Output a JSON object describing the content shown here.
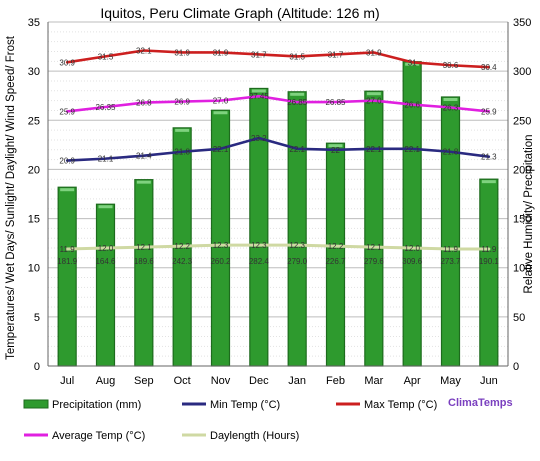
{
  "chart_data": {
    "type": "bar",
    "title": "Iquitos, Peru Climate Graph (Altitude: 126 m)",
    "ylabel_left": "Temperatures/ Wet Days/ Sunlight/ Daylight/ Wind Speed/ Frost",
    "ylabel_right": "Relative Humidity/ Precipitation",
    "ylim_left": [
      0,
      35
    ],
    "ylim_right": [
      0,
      350
    ],
    "yticks_left": [
      "0",
      "5",
      "10",
      "15",
      "20",
      "25",
      "30",
      "35"
    ],
    "yticks_right": [
      "0",
      "50",
      "100",
      "150",
      "200",
      "250",
      "300",
      "350"
    ],
    "categories": [
      "Jul",
      "Aug",
      "Sep",
      "Oct",
      "Nov",
      "Dec",
      "Jan",
      "Feb",
      "Mar",
      "Apr",
      "May",
      "Jun"
    ],
    "grid": true,
    "legend_position": "bottom",
    "series": [
      {
        "name": "Precipitation (mm)",
        "kind": "bar",
        "axis": "right",
        "color": "#2e9a2e",
        "values": [
          181.9,
          164.6,
          189.6,
          242.3,
          260.2,
          282.4,
          279.0,
          226.7,
          279.6,
          309.6,
          273.7,
          190.1
        ],
        "labels": [
          "181.9",
          "164.6",
          "189.6",
          "242.3",
          "260.2",
          "282.4",
          "279.0",
          "226.7",
          "279.6",
          "309.6",
          "273.7",
          "190.1"
        ]
      },
      {
        "name": "Min Temp (°C)",
        "kind": "line",
        "axis": "left",
        "color": "#2a2a80",
        "values": [
          20.9,
          21.1,
          21.4,
          21.8,
          22.1,
          23.2,
          22.1,
          22.0,
          22.1,
          22.1,
          21.8,
          21.3
        ],
        "labels": [
          "20.9",
          "21.1",
          "21.4",
          "21.8",
          "22.1",
          "23.2",
          "22.1",
          "22",
          "22.1",
          "22.1",
          "21.8",
          "21.3"
        ]
      },
      {
        "name": "Max Temp (°C)",
        "kind": "line",
        "axis": "left",
        "color": "#cc1f1f",
        "values": [
          30.9,
          31.5,
          32.1,
          31.9,
          31.9,
          31.7,
          31.5,
          31.7,
          31.9,
          30.9,
          30.6,
          30.4
        ],
        "labels": [
          "30.9",
          "31.5",
          "32.1",
          "31.9",
          "31.9",
          "31.7",
          "31.5",
          "31.7",
          "31.9",
          "31",
          "30.6",
          "30.4"
        ]
      },
      {
        "name": "Average Temp (°C)",
        "kind": "line",
        "axis": "left",
        "color": "#e020e0",
        "values": [
          25.9,
          26.35,
          26.8,
          26.9,
          27.0,
          27.45,
          26.85,
          26.85,
          27.0,
          26.6,
          26.3,
          25.9
        ],
        "labels": [
          "25.9",
          "26.35",
          "26.8",
          "26.9",
          "27.0",
          "27.45",
          "26.85",
          "26.85",
          "27.0",
          "26.6",
          "26.3",
          "25.9"
        ]
      },
      {
        "name": "Daylength (Hours)",
        "kind": "line",
        "axis": "left",
        "color": "#cfd9a3",
        "values": [
          11.9,
          12.0,
          12.1,
          12.2,
          12.3,
          12.3,
          12.3,
          12.2,
          12.1,
          12.0,
          11.9,
          11.9
        ],
        "labels": [
          "11.9",
          "12.0",
          "12.1",
          "12.2",
          "12.3",
          "12.3",
          "12.3",
          "12.2",
          "12.1",
          "12.0",
          "11.9",
          "11.9"
        ]
      }
    ]
  },
  "brand": "ClimaTemps",
  "brand_color": "#7a3fbf"
}
